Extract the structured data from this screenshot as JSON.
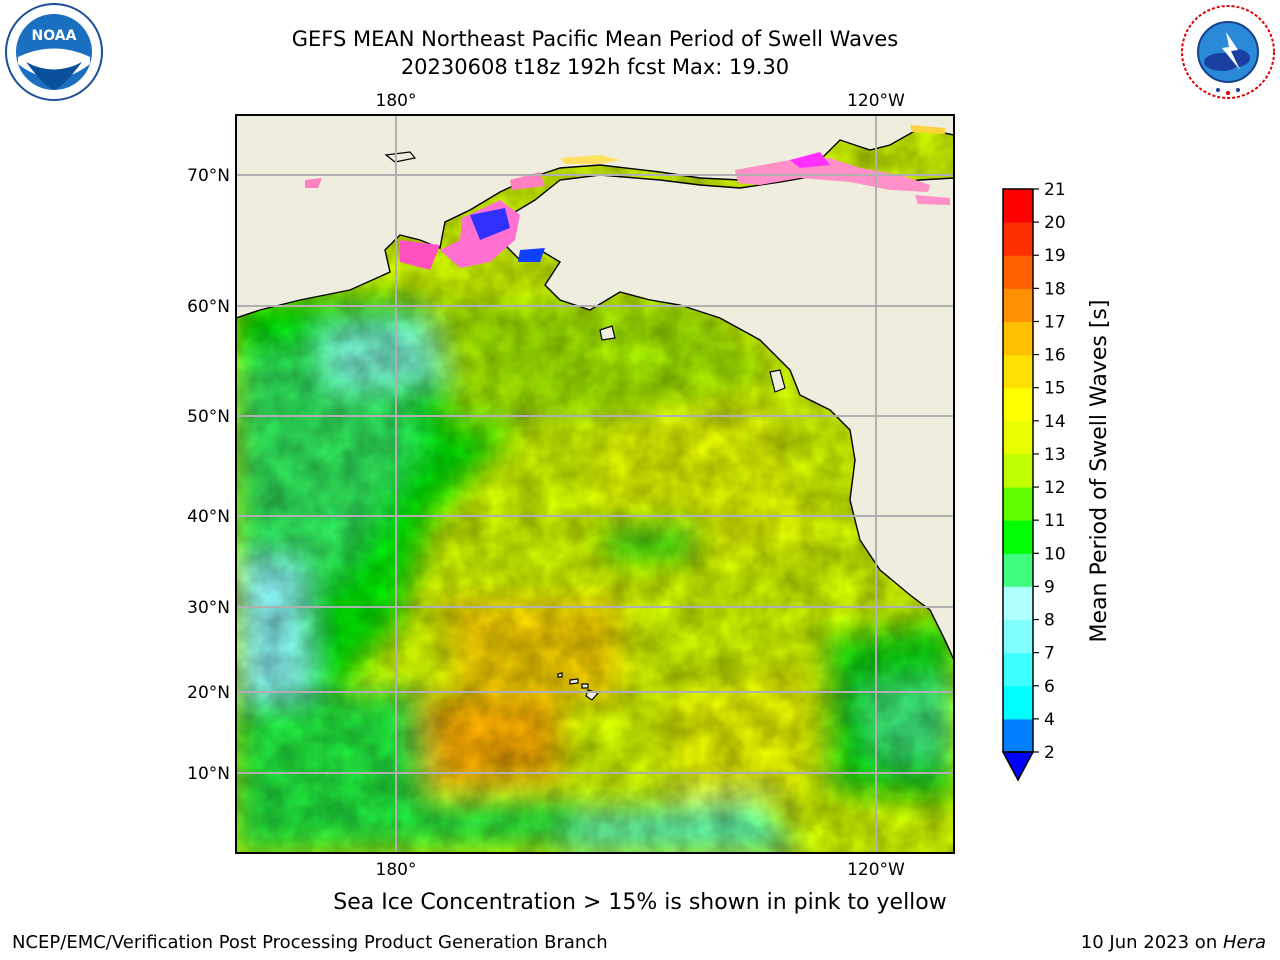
{
  "title": {
    "line1": "GEFS MEAN Northeast Pacific Mean Period of Swell Waves",
    "line2": "20230608 t18z 192h fcst   Max: 19.30"
  },
  "map": {
    "lon_labels_top": [
      "180°",
      "120°W"
    ],
    "lon_labels_bottom": [
      "180°",
      "120°W"
    ],
    "lat_labels": [
      "70°N",
      "60°N",
      "50°N",
      "40°N",
      "30°N",
      "20°N",
      "10°N"
    ],
    "land_color": "#efedde",
    "grid_color": "#b0b0b0"
  },
  "colorbar": {
    "label": "Mean Period of Swell Waves [s]",
    "ticks": [
      "2",
      "4",
      "6",
      "7",
      "8",
      "9",
      "10",
      "11",
      "12",
      "13",
      "14",
      "15",
      "16",
      "17",
      "18",
      "19",
      "20",
      "21"
    ],
    "colors": [
      "#0000ff",
      "#0080ff",
      "#00ffff",
      "#40ffff",
      "#80ffff",
      "#b0ffff",
      "#40ff80",
      "#00ff00",
      "#60ff00",
      "#c0ff00",
      "#e8ff00",
      "#ffff00",
      "#ffe000",
      "#ffc000",
      "#ff9000",
      "#ff6000",
      "#ff3000",
      "#ff0000"
    ]
  },
  "ice_note": "Sea Ice Concentration > 15% is shown in pink to yellow",
  "footer": {
    "left": "NCEP/EMC/Verification Post Processing Product Generation Branch",
    "right_date": "10 Jun 2023 on ",
    "right_host": "Hera"
  },
  "logos": {
    "left": "noaa-logo",
    "right": "nws-logo"
  }
}
